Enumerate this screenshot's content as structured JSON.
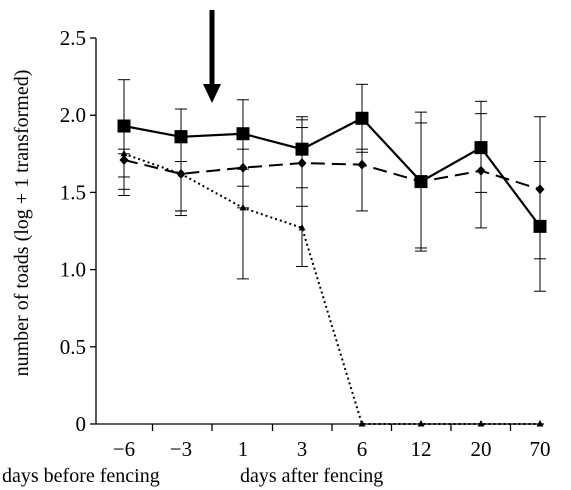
{
  "chart_data": {
    "type": "line",
    "title": "",
    "ylabel": "number of toads (log + 1 transformed)",
    "xlabel": "",
    "x_group_labels": [
      "days before fencing",
      "days after fencing"
    ],
    "categories": [
      "−6",
      "−3",
      "1",
      "3",
      "6",
      "12",
      "20",
      "70"
    ],
    "yticks": [
      "0",
      "0.5",
      "1.0",
      "1.5",
      "2.0",
      "2.5"
    ],
    "ylim": [
      0,
      2.5
    ],
    "grid": false,
    "legend": "none",
    "annotation": "arrow-down between −3 and 1 (fencing)",
    "series": [
      {
        "style": "solid",
        "marker": "square",
        "color": "#000000",
        "values": [
          1.93,
          1.86,
          1.88,
          1.78,
          1.98,
          1.57,
          1.79,
          1.28
        ],
        "err_low": [
          1.6,
          1.38,
          1.65,
          1.53,
          1.76,
          1.14,
          1.5,
          1.07
        ],
        "err_high": [
          2.23,
          2.04,
          2.1,
          1.99,
          2.2,
          2.02,
          2.09,
          1.99
        ]
      },
      {
        "style": "dashed",
        "marker": "diamond",
        "color": "#000000",
        "values": [
          1.71,
          1.62,
          1.66,
          1.69,
          1.68,
          1.57,
          1.64,
          1.52
        ],
        "err_low": [
          1.48,
          1.35,
          1.4,
          1.41,
          1.38,
          1.12,
          1.27,
          0.86
        ],
        "err_high": [
          1.75,
          1.7,
          1.78,
          1.97,
          1.78,
          1.95,
          2.01,
          1.7
        ]
      },
      {
        "style": "dotted",
        "marker": "triangle",
        "color": "#000000",
        "values": [
          1.75,
          1.62,
          1.4,
          1.27,
          0,
          0,
          0,
          0
        ],
        "err_low": [
          1.52,
          1.38,
          0.94,
          1.02,
          null,
          null,
          null,
          null
        ],
        "err_high": [
          1.78,
          1.9,
          1.54,
          1.92,
          null,
          null,
          null,
          null
        ]
      }
    ]
  }
}
